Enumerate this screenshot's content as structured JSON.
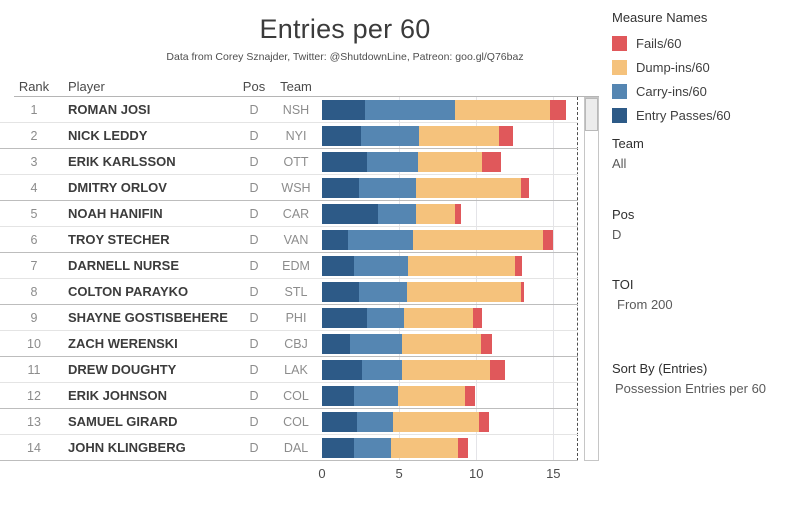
{
  "title": "Entries per 60",
  "subtitle": "Data from Corey Sznajder, Twitter: @ShutdownLine, Patreon: goo.gl/Q76baz",
  "table": {
    "headers": {
      "rank": "Rank",
      "player": "Player",
      "pos": "Pos",
      "team": "Team"
    }
  },
  "legend": {
    "title": "Measure Names",
    "items": [
      {
        "label": "Fails/60",
        "color": "#e0585b"
      },
      {
        "label": "Dump-ins/60",
        "color": "#f5c27c"
      },
      {
        "label": "Carry-ins/60",
        "color": "#5586b2"
      },
      {
        "label": "Entry Passes/60",
        "color": "#2d5a87"
      }
    ]
  },
  "filters": [
    {
      "label": "Team",
      "value": "All"
    },
    {
      "label": "Pos",
      "value": "D"
    },
    {
      "label": "TOI",
      "value": "From 200"
    },
    {
      "label": "Sort By (Entries)",
      "value": "Possession Entries per 60"
    }
  ],
  "chart_data": {
    "type": "bar",
    "orientation": "horizontal",
    "stacked": true,
    "title": "Entries per 60",
    "xlabel": "",
    "ylabel": "",
    "xlim": [
      0,
      16.6
    ],
    "x_ticks": [
      0,
      5,
      10,
      15
    ],
    "grid": "vertical",
    "legend_position": "right",
    "series": [
      {
        "name": "Entry Passes/60",
        "color": "#2d5a87"
      },
      {
        "name": "Carry-ins/60",
        "color": "#5586b2"
      },
      {
        "name": "Dump-ins/60",
        "color": "#f5c27c"
      },
      {
        "name": "Fails/60",
        "color": "#e0585b"
      }
    ],
    "rows": [
      {
        "rank": "1",
        "player": "ROMAN JOSI",
        "pos": "D",
        "team": "NSH",
        "values": [
          2.8,
          5.8,
          6.2,
          1.0
        ],
        "total": 15.8
      },
      {
        "rank": "2",
        "player": "NICK LEDDY",
        "pos": "D",
        "team": "NYI",
        "values": [
          2.5,
          3.8,
          5.2,
          0.9
        ],
        "total": 12.4
      },
      {
        "rank": "3",
        "player": "ERIK KARLSSON",
        "pos": "D",
        "team": "OTT",
        "values": [
          2.9,
          3.3,
          4.2,
          1.2
        ],
        "total": 11.6
      },
      {
        "rank": "4",
        "player": "DMITRY ORLOV",
        "pos": "D",
        "team": "WSH",
        "values": [
          2.4,
          3.7,
          6.8,
          0.5
        ],
        "total": 13.4
      },
      {
        "rank": "5",
        "player": "NOAH HANIFIN",
        "pos": "D",
        "team": "CAR",
        "values": [
          3.6,
          2.5,
          2.5,
          0.4
        ],
        "total": 9.0
      },
      {
        "rank": "6",
        "player": "TROY STECHER",
        "pos": "D",
        "team": "VAN",
        "values": [
          1.7,
          4.2,
          8.4,
          0.7
        ],
        "total": 15.0
      },
      {
        "rank": "7",
        "player": "DARNELL NURSE",
        "pos": "D",
        "team": "EDM",
        "values": [
          2.1,
          3.5,
          6.9,
          0.5
        ],
        "total": 13.0
      },
      {
        "rank": "8",
        "player": "COLTON PARAYKO",
        "pos": "D",
        "team": "STL",
        "values": [
          2.4,
          3.1,
          7.4,
          0.2
        ],
        "total": 13.1
      },
      {
        "rank": "9",
        "player": "SHAYNE GOSTISBEHERE",
        "pos": "D",
        "team": "PHI",
        "values": [
          2.9,
          2.4,
          4.5,
          0.6
        ],
        "total": 10.4
      },
      {
        "rank": "10",
        "player": "ZACH WERENSKI",
        "pos": "D",
        "team": "CBJ",
        "values": [
          1.8,
          3.4,
          5.1,
          0.7
        ],
        "total": 11.0
      },
      {
        "rank": "11",
        "player": "DREW DOUGHTY",
        "pos": "D",
        "team": "LAK",
        "values": [
          2.6,
          2.6,
          5.7,
          1.0
        ],
        "total": 11.9
      },
      {
        "rank": "12",
        "player": "ERIK JOHNSON",
        "pos": "D",
        "team": "COL",
        "values": [
          2.1,
          2.8,
          4.4,
          0.6
        ],
        "total": 9.9
      },
      {
        "rank": "13",
        "player": "SAMUEL GIRARD",
        "pos": "D",
        "team": "COL",
        "values": [
          2.3,
          2.3,
          5.6,
          0.6
        ],
        "total": 10.8
      },
      {
        "rank": "14",
        "player": "JOHN KLINGBERG",
        "pos": "D",
        "team": "DAL",
        "values": [
          2.1,
          2.4,
          4.3,
          0.7
        ],
        "total": 9.5
      }
    ]
  }
}
